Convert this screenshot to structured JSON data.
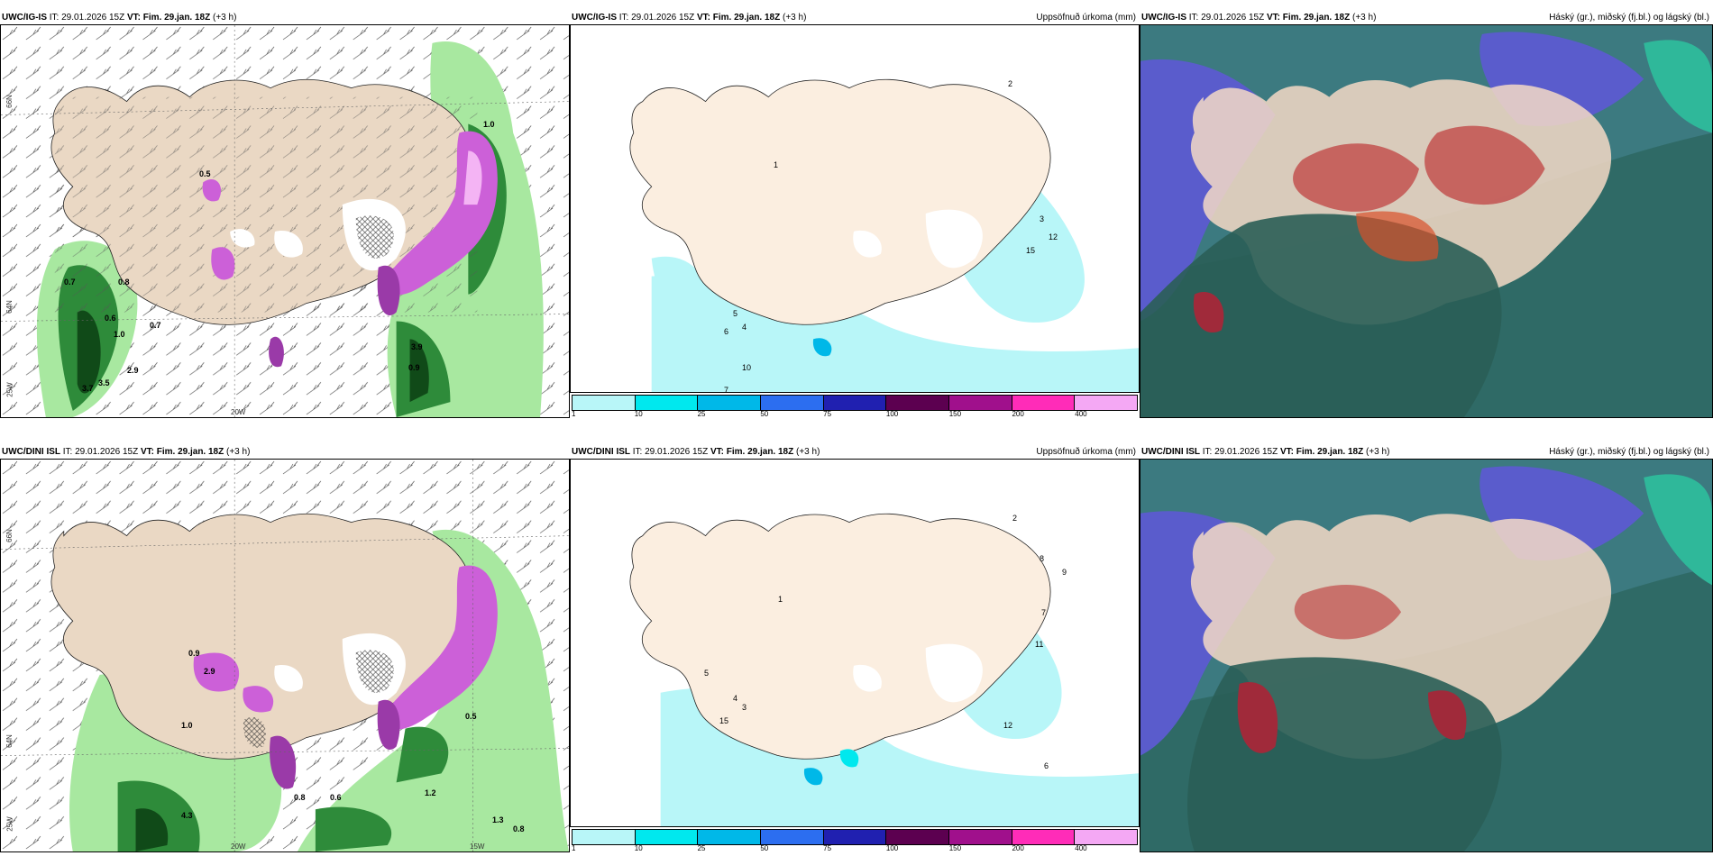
{
  "panels": [
    {
      "model": "UWC/IG-IS",
      "it": "IT: 29.01.2026 15Z",
      "vt": "VT: Fim. 29.jan. 18Z",
      "lead": "(+3 h)",
      "subtitle": ""
    },
    {
      "model": "UWC/IG-IS",
      "it": "IT: 29.01.2026 15Z",
      "vt": "VT: Fim. 29.jan. 18Z",
      "lead": "(+3 h)",
      "subtitle": "Uppsöfnuð úrkoma (mm)"
    },
    {
      "model": "UWC/IG-IS",
      "it": "IT: 29.01.2026 15Z",
      "vt": "VT: Fim. 29.jan. 18Z",
      "lead": "(+3 h)",
      "subtitle": "Háský (gr.), miðský (fj.bl.) og lágský (bl.)"
    },
    {
      "model": "UWC/DINI ISL",
      "it": "IT: 29.01.2026 15Z",
      "vt": "VT: Fim. 29.jan. 18Z",
      "lead": "(+3 h)",
      "subtitle": ""
    },
    {
      "model": "UWC/DINI ISL",
      "it": "IT: 29.01.2026 15Z",
      "vt": "VT: Fim. 29.jan. 18Z",
      "lead": "(+3 h)",
      "subtitle": "Uppsöfnuð úrkoma (mm)"
    },
    {
      "model": "UWC/DINI ISL",
      "it": "IT: 29.01.2026 15Z",
      "vt": "VT: Fim. 29.jan. 18Z",
      "lead": "(+3 h)",
      "subtitle": "Háský (gr.), miðský (fj.bl.) og lágský (bl.)"
    }
  ],
  "axes": {
    "lat_66": "66N",
    "lat_64": "64N",
    "lon_25w": "25W",
    "lon_20w": "20W",
    "lon_15w": "15W"
  },
  "colorbar": {
    "ticks": [
      "1",
      "10",
      "25",
      "50",
      "75",
      "100",
      "150",
      "200",
      "400"
    ],
    "colors": [
      "#b8f6f8",
      "#00e8ee",
      "#00b8e8",
      "#2c6ef0",
      "#2020b0",
      "#5c0050",
      "#a0108c",
      "#ff2cb8",
      "#f4a8f4"
    ]
  },
  "labels_ig_precip": {
    "p1": "0.7",
    "p2": "0.6",
    "p3": "1.0",
    "p4": "0.7",
    "p5": "3.7",
    "p6": "3.5",
    "p7": "2.9",
    "p8": "3.9",
    "p9": "0.9",
    "p10": "1.0",
    "p11": "0.5",
    "p12": "0.8"
  },
  "labels_ig_accum": {
    "a1": "1",
    "a2": "2",
    "a3": "3",
    "a4": "4",
    "a5": "5",
    "a6": "6",
    "a7": "7",
    "a8": "10",
    "a9": "12",
    "a10": "15"
  },
  "labels_dini_precip": {
    "d1": "0.9",
    "d2": "2.9",
    "d3": "1.0",
    "d4": "0.8",
    "d5": "4.3",
    "d6": "1.2",
    "d7": "0.6",
    "d8": "0.5",
    "d9": "0.8",
    "d10": "1.3"
  },
  "labels_dini_accum": {
    "e1": "1",
    "e2": "2",
    "e3": "3",
    "e4": "4",
    "e5": "5",
    "e6": "6",
    "e7": "7",
    "e8": "8",
    "e9": "11",
    "e10": "12",
    "e11": "15",
    "e12": "9"
  }
}
